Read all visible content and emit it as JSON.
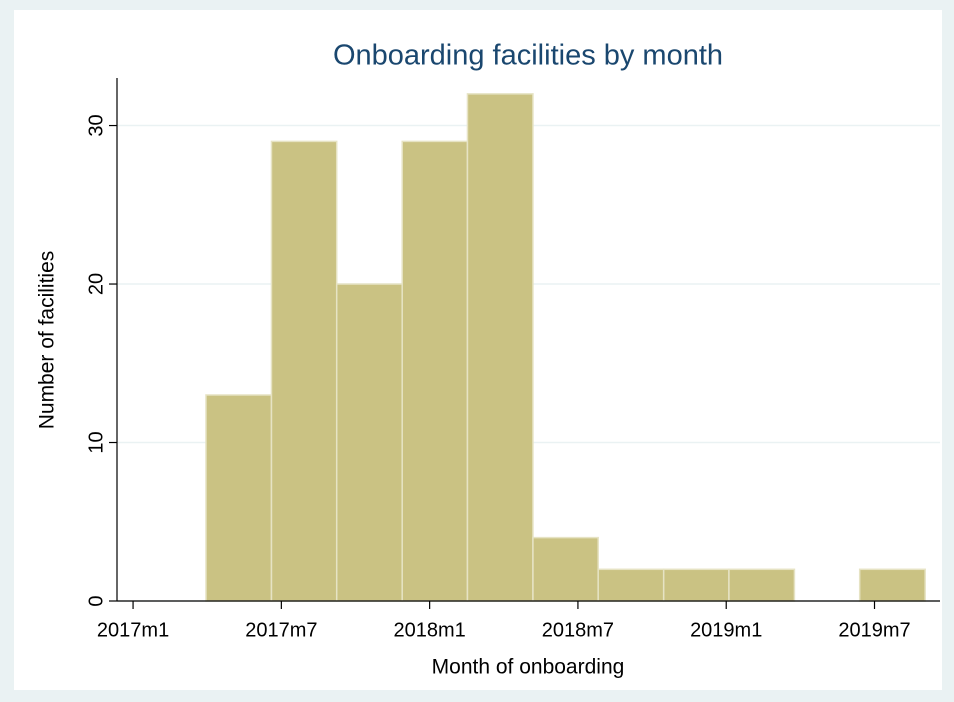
{
  "chart_data": {
    "type": "histogram",
    "title": "Onboarding facilities by month",
    "x_label": "Month of onboarding",
    "y_label": "Number of facilities",
    "bins": [
      686.95,
      689.6,
      692.24,
      694.89,
      697.53,
      700.18,
      702.82,
      705.47,
      708.11,
      710.76,
      713.4,
      716.05
    ],
    "values": [
      13,
      29,
      20,
      29,
      32,
      4,
      2,
      2,
      2,
      0,
      2
    ],
    "color": "#cac283",
    "xlim": [
      683.35,
      716.65
    ],
    "ylim": [
      0,
      33
    ],
    "xticks": [
      {
        "value": 684,
        "label": "2017m1"
      },
      {
        "value": 690,
        "label": "2017m7"
      },
      {
        "value": 696,
        "label": "2018m1"
      },
      {
        "value": 702,
        "label": "2018m7"
      },
      {
        "value": 708,
        "label": "2019m1"
      },
      {
        "value": 714,
        "label": "2019m7"
      }
    ],
    "yticks": [
      0,
      10,
      20,
      30
    ],
    "grid": true
  }
}
